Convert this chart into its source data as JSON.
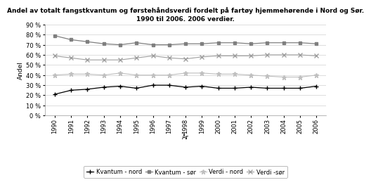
{
  "title": "Andel av totalt fangstkvantum og førstehåndsverdi fordelt på fartøy hjemmehørende i Nord og Sør.\n1990 til 2006. 2006 verdier.",
  "xlabel": "År",
  "ylabel": "Andel",
  "years": [
    1990,
    1991,
    1992,
    1993,
    1994,
    1995,
    1996,
    1997,
    1998,
    1999,
    2000,
    2001,
    2002,
    2003,
    2004,
    2005,
    2006
  ],
  "kvantum_nord": [
    0.21,
    0.25,
    0.26,
    0.28,
    0.29,
    0.27,
    0.3,
    0.3,
    0.28,
    0.29,
    0.27,
    0.27,
    0.28,
    0.27,
    0.27,
    0.27,
    0.29
  ],
  "kvantum_sor": [
    0.79,
    0.75,
    0.73,
    0.71,
    0.7,
    0.72,
    0.7,
    0.7,
    0.71,
    0.71,
    0.72,
    0.72,
    0.71,
    0.72,
    0.72,
    0.72,
    0.71
  ],
  "verdi_nord": [
    0.4,
    0.41,
    0.41,
    0.4,
    0.42,
    0.4,
    0.4,
    0.4,
    0.42,
    0.42,
    0.41,
    0.41,
    0.4,
    0.39,
    0.38,
    0.38,
    0.4
  ],
  "verdi_sor": [
    0.59,
    0.57,
    0.55,
    0.55,
    0.55,
    0.57,
    0.59,
    0.57,
    0.56,
    0.58,
    0.59,
    0.59,
    0.59,
    0.6,
    0.6,
    0.6,
    0.59
  ],
  "color_kvantum_nord": "#000000",
  "color_kvantum_sor": "#7f7f7f",
  "color_verdi_nord": "#bfbfbf",
  "color_verdi_sor": "#9f9f9f",
  "ylim": [
    0.0,
    0.9
  ],
  "yticks": [
    0.0,
    0.1,
    0.2,
    0.3,
    0.4,
    0.5,
    0.6,
    0.7,
    0.8,
    0.9
  ],
  "legend_labels": [
    "Kvantum - nord",
    "Kvantum - sør",
    "Verdi - nord",
    "Verdi -sør"
  ],
  "title_fontsize": 6.5,
  "axis_label_fontsize": 6.5,
  "tick_fontsize": 6.0,
  "legend_fontsize": 6.0,
  "background_color": "#ffffff",
  "grid_color": "#d0d0d0"
}
